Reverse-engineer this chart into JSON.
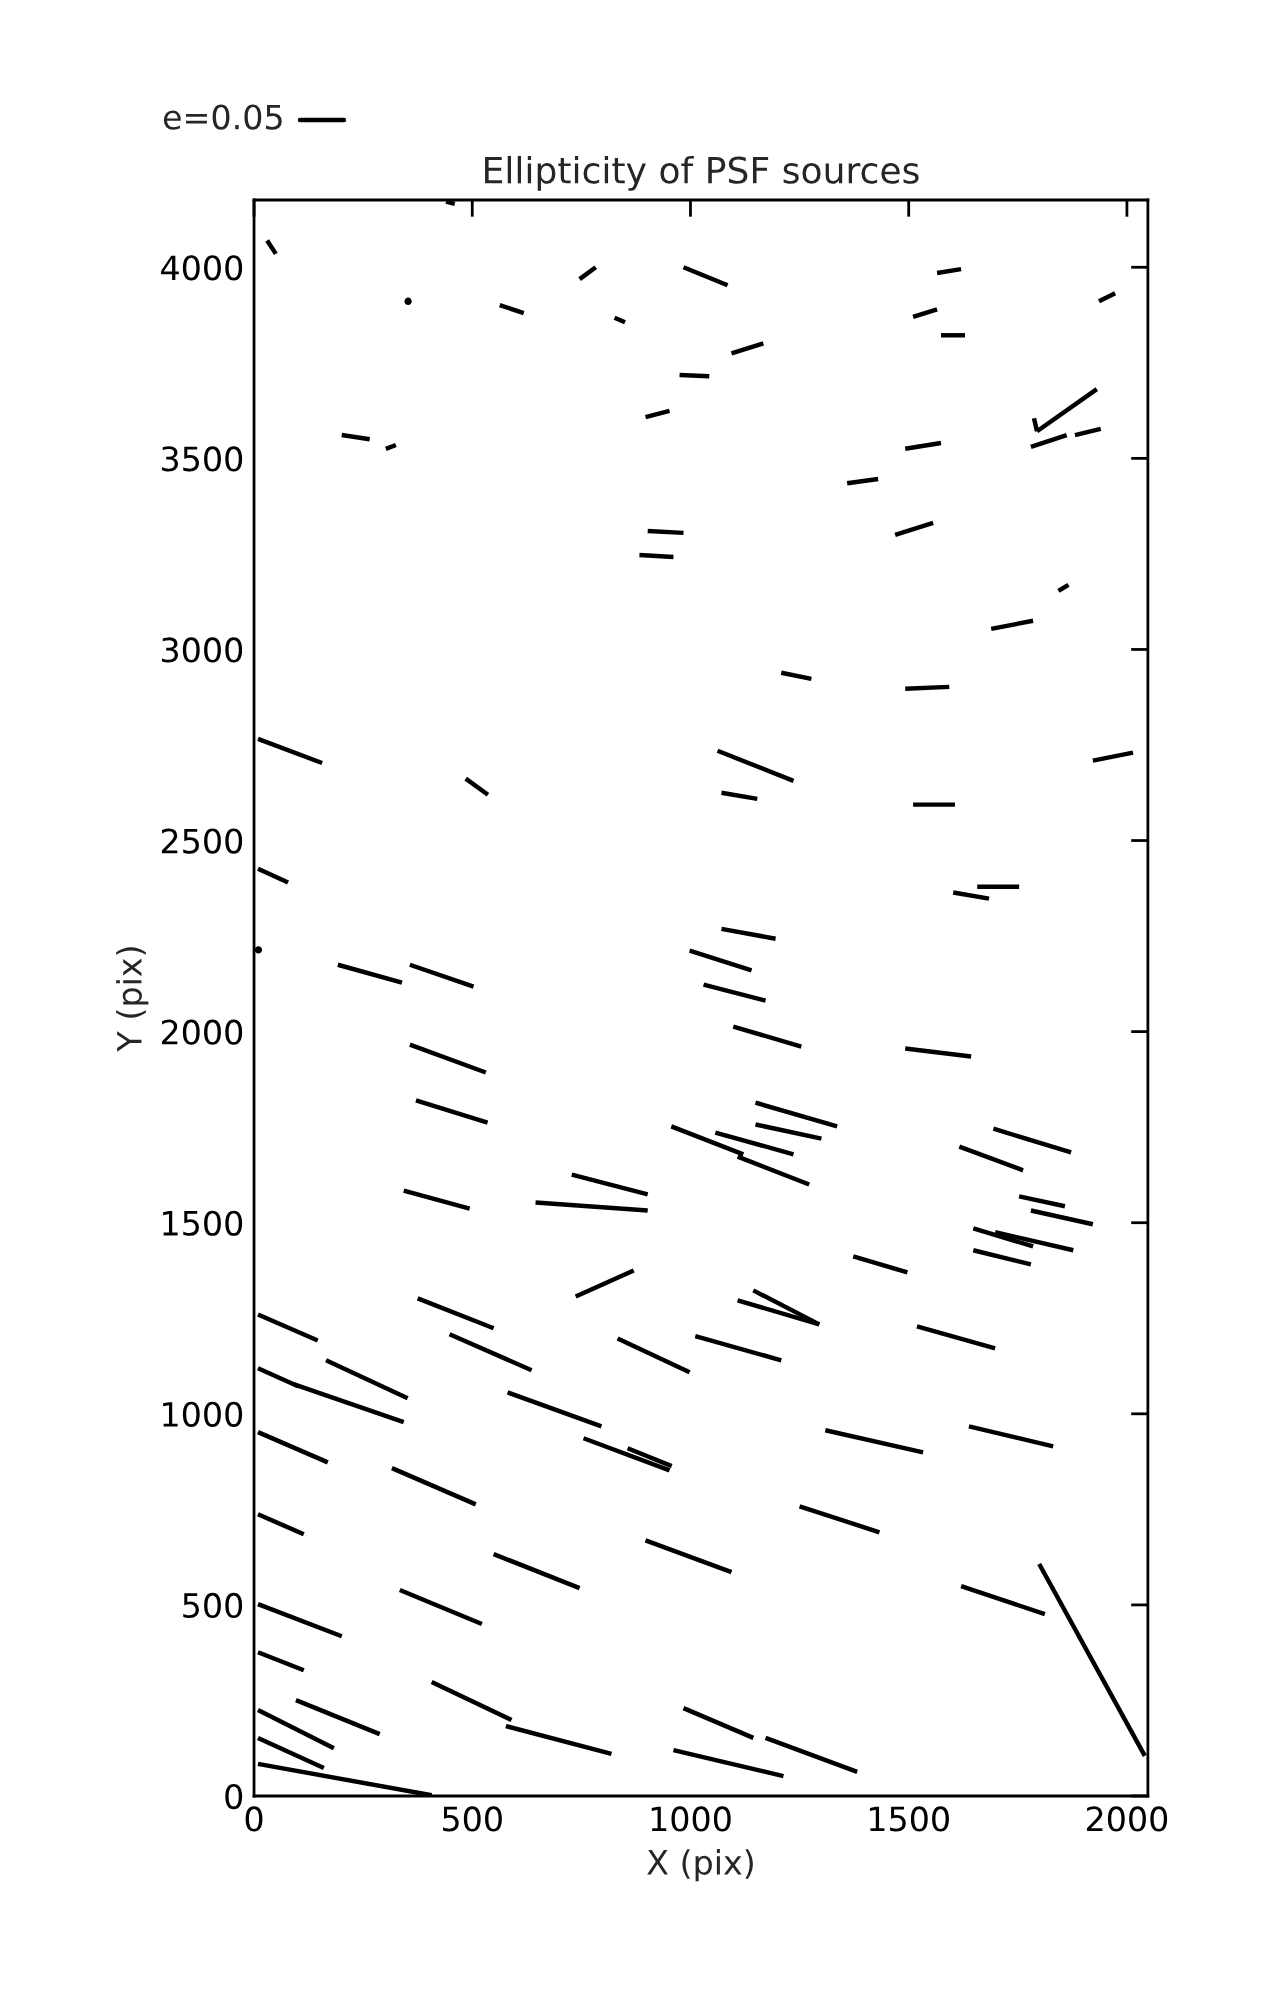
{
  "chart_data": {
    "type": "line",
    "title": "Ellipticity of PSF sources",
    "xlabel": "X (pix)",
    "ylabel": "Y (pix)",
    "annotations": [
      "e=0.05"
    ],
    "xlim": [
      0,
      2048
    ],
    "ylim": [
      0,
      4176
    ],
    "xticks": [
      0,
      500,
      1000,
      1500,
      2000
    ],
    "yticks": [
      0,
      500,
      1000,
      1500,
      2000,
      2500,
      3000,
      3500,
      4000
    ],
    "grid": false,
    "line_style": "solid",
    "marker": "none",
    "series": [
      {
        "color": "#000000",
        "x": [
          30,
          50
        ],
        "values": [
          4070,
          4035
        ]
      },
      {
        "color": "#000000",
        "x": [
          440,
          460
        ],
        "values": [
          4172,
          4166
        ]
      },
      {
        "type": "scatter",
        "marker": "circle",
        "color": "#000000",
        "x": [
          353
        ],
        "values": [
          3911
        ]
      },
      {
        "color": "#000000",
        "x": [
          563,
          618
        ],
        "values": [
          3901,
          3880
        ]
      },
      {
        "color": "#000000",
        "x": [
          746,
          783
        ],
        "values": [
          3969,
          4000
        ]
      },
      {
        "color": "#000000",
        "x": [
          826,
          850
        ],
        "values": [
          3868,
          3856
        ]
      },
      {
        "color": "#000000",
        "x": [
          984,
          1085
        ],
        "values": [
          4000,
          3953
        ]
      },
      {
        "color": "#000000",
        "x": [
          975,
          1043
        ],
        "values": [
          3718,
          3715
        ]
      },
      {
        "color": "#000000",
        "x": [
          897,
          952
        ],
        "values": [
          3608,
          3624
        ]
      },
      {
        "color": "#000000",
        "x": [
          201,
          265
        ],
        "values": [
          3561,
          3550
        ]
      },
      {
        "color": "#000000",
        "x": [
          302,
          325
        ],
        "values": [
          3525,
          3535
        ]
      },
      {
        "color": "#000000",
        "x": [
          902,
          984
        ],
        "values": [
          3310,
          3305
        ]
      },
      {
        "color": "#000000",
        "x": [
          883,
          961
        ],
        "values": [
          3247,
          3242
        ]
      },
      {
        "color": "#000000",
        "x": [
          1565,
          1620
        ],
        "values": [
          3985,
          3995
        ]
      },
      {
        "color": "#000000",
        "x": [
          1936,
          1973
        ],
        "values": [
          3911,
          3932
        ]
      },
      {
        "color": "#000000",
        "x": [
          1510,
          1565
        ],
        "values": [
          3870,
          3890
        ]
      },
      {
        "color": "#000000",
        "x": [
          1574,
          1629
        ],
        "values": [
          3822,
          3822
        ]
      },
      {
        "color": "#000000",
        "x": [
          1094,
          1167
        ],
        "values": [
          3775,
          3801
        ]
      },
      {
        "color": "#000000",
        "x": [
          1794,
          1931
        ],
        "values": [
          3571,
          3681
        ]
      },
      {
        "color": "#000000",
        "x": [
          1787,
          1794
        ],
        "values": [
          3605,
          3571
        ]
      },
      {
        "color": "#000000",
        "x": [
          1780,
          1862
        ],
        "values": [
          3530,
          3561
        ]
      },
      {
        "color": "#000000",
        "x": [
          1881,
          1940
        ],
        "values": [
          3561,
          3577
        ]
      },
      {
        "color": "#000000",
        "x": [
          1492,
          1574
        ],
        "values": [
          3525,
          3540
        ]
      },
      {
        "color": "#000000",
        "x": [
          1359,
          1430
        ],
        "values": [
          3435,
          3446
        ]
      },
      {
        "color": "#000000",
        "x": [
          1469,
          1556
        ],
        "values": [
          3300,
          3331
        ]
      },
      {
        "color": "#000000",
        "x": [
          1843,
          1866
        ],
        "values": [
          3153,
          3169
        ]
      },
      {
        "color": "#000000",
        "x": [
          1689,
          1785
        ],
        "values": [
          3054,
          3075
        ]
      },
      {
        "color": "#000000",
        "x": [
          1208,
          1277
        ],
        "values": [
          2939,
          2923
        ]
      },
      {
        "color": "#000000",
        "x": [
          1492,
          1593
        ],
        "values": [
          2897,
          2902
        ]
      },
      {
        "color": "#000000",
        "x": [
          9,
          156
        ],
        "values": [
          2766,
          2703
        ]
      },
      {
        "color": "#000000",
        "x": [
          485,
          536
        ],
        "values": [
          2662,
          2620
        ]
      },
      {
        "color": "#000000",
        "x": [
          9,
          78
        ],
        "values": [
          2426,
          2390
        ]
      },
      {
        "type": "scatter",
        "marker": "circle",
        "color": "#000000",
        "x": [
          10
        ],
        "values": [
          2214
        ]
      },
      {
        "color": "#000000",
        "x": [
          192,
          339
        ],
        "values": [
          2175,
          2128
        ]
      },
      {
        "color": "#000000",
        "x": [
          357,
          503
        ],
        "values": [
          2175,
          2118
        ]
      },
      {
        "color": "#000000",
        "x": [
          357,
          531
        ],
        "values": [
          1966,
          1893
        ]
      },
      {
        "color": "#000000",
        "x": [
          371,
          535
        ],
        "values": [
          1820,
          1762
        ]
      },
      {
        "color": "#000000",
        "x": [
          343,
          494
        ],
        "values": [
          1584,
          1537
        ]
      },
      {
        "color": "#000000",
        "x": [
          728,
          902
        ],
        "values": [
          1626,
          1574
        ]
      },
      {
        "color": "#000000",
        "x": [
          645,
          902
        ],
        "values": [
          1553,
          1532
        ]
      },
      {
        "color": "#000000",
        "x": [
          737,
          870
        ],
        "values": [
          1307,
          1375
        ]
      },
      {
        "color": "#000000",
        "x": [
          956,
          1121
        ],
        "values": [
          1752,
          1679
        ]
      },
      {
        "color": "#000000",
        "x": [
          1062,
          1236
        ],
        "values": [
          2735,
          2656
        ]
      },
      {
        "color": "#000000",
        "x": [
          1071,
          1153
        ],
        "values": [
          2625,
          2609
        ]
      },
      {
        "color": "#000000",
        "x": [
          1510,
          1606
        ],
        "values": [
          2594,
          2594
        ]
      },
      {
        "color": "#000000",
        "x": [
          1922,
          2014
        ],
        "values": [
          2709,
          2730
        ]
      },
      {
        "color": "#000000",
        "x": [
          1657,
          1753
        ],
        "values": [
          2379,
          2379
        ]
      },
      {
        "color": "#000000",
        "x": [
          1602,
          1684
        ],
        "values": [
          2364,
          2348
        ]
      },
      {
        "color": "#000000",
        "x": [
          1071,
          1195
        ],
        "values": [
          2269,
          2243
        ]
      },
      {
        "color": "#000000",
        "x": [
          998,
          1140
        ],
        "values": [
          2212,
          2160
        ]
      },
      {
        "color": "#000000",
        "x": [
          1030,
          1172
        ],
        "values": [
          2123,
          2081
        ]
      },
      {
        "color": "#000000",
        "x": [
          1098,
          1254
        ],
        "values": [
          2013,
          1961
        ]
      },
      {
        "color": "#000000",
        "x": [
          1492,
          1643
        ],
        "values": [
          1956,
          1935
        ]
      },
      {
        "color": "#000000",
        "x": [
          1149,
          1336
        ],
        "values": [
          1814,
          1752
        ]
      },
      {
        "color": "#000000",
        "x": [
          1149,
          1300
        ],
        "values": [
          1757,
          1720
        ]
      },
      {
        "color": "#000000",
        "x": [
          1057,
          1236
        ],
        "values": [
          1736,
          1679
        ]
      },
      {
        "color": "#000000",
        "x": [
          1108,
          1272
        ],
        "values": [
          1673,
          1600
        ]
      },
      {
        "color": "#000000",
        "x": [
          1694,
          1872
        ],
        "values": [
          1746,
          1684
        ]
      },
      {
        "color": "#000000",
        "x": [
          1616,
          1762
        ],
        "values": [
          1699,
          1637
        ]
      },
      {
        "color": "#000000",
        "x": [
          1753,
          1858
        ],
        "values": [
          1569,
          1543
        ]
      },
      {
        "color": "#000000",
        "x": [
          1780,
          1922
        ],
        "values": [
          1532,
          1496
        ]
      },
      {
        "color": "#000000",
        "x": [
          1648,
          1785
        ],
        "values": [
          1485,
          1438
        ]
      },
      {
        "color": "#000000",
        "x": [
          1698,
          1877
        ],
        "values": [
          1475,
          1428
        ]
      },
      {
        "color": "#000000",
        "x": [
          1648,
          1780
        ],
        "values": [
          1428,
          1391
        ]
      },
      {
        "color": "#000000",
        "x": [
          1373,
          1497
        ],
        "values": [
          1412,
          1370
        ]
      },
      {
        "color": "#000000",
        "x": [
          375,
          549
        ],
        "values": [
          1302,
          1224
        ]
      },
      {
        "color": "#000000",
        "x": [
          9,
          146
        ],
        "values": [
          1260,
          1192
        ]
      },
      {
        "color": "#000000",
        "x": [
          448,
          636
        ],
        "values": [
          1208,
          1114
        ]
      },
      {
        "color": "#000000",
        "x": [
          833,
          998
        ],
        "values": [
          1197,
          1109
        ]
      },
      {
        "color": "#000000",
        "x": [
          165,
          352
        ],
        "values": [
          1140,
          1041
        ]
      },
      {
        "color": "#000000",
        "x": [
          9,
          101
        ],
        "values": [
          1119,
          1072
        ]
      },
      {
        "color": "#000000",
        "x": [
          92,
          343
        ],
        "values": [
          1077,
          978
        ]
      },
      {
        "color": "#000000",
        "x": [
          581,
          796
        ],
        "values": [
          1056,
          967
        ]
      },
      {
        "color": "#000000",
        "x": [
          9,
          169
        ],
        "values": [
          952,
          873
        ]
      },
      {
        "color": "#000000",
        "x": [
          755,
          952
        ],
        "values": [
          936,
          852
        ]
      },
      {
        "color": "#000000",
        "x": [
          856,
          957
        ],
        "values": [
          910,
          863
        ]
      },
      {
        "color": "#000000",
        "x": [
          316,
          508
        ],
        "values": [
          858,
          763
        ]
      },
      {
        "color": "#000000",
        "x": [
          9,
          114
        ],
        "values": [
          737,
          685
        ]
      },
      {
        "color": "#000000",
        "x": [
          549,
          746
        ],
        "values": [
          633,
          544
        ]
      },
      {
        "color": "#000000",
        "x": [
          897,
          1094
        ],
        "values": [
          669,
          586
        ]
      },
      {
        "color": "#000000",
        "x": [
          334,
          522
        ],
        "values": [
          539,
          450
        ]
      },
      {
        "color": "#000000",
        "x": [
          9,
          201
        ],
        "values": [
          502,
          418
        ]
      },
      {
        "color": "#000000",
        "x": [
          9,
          114
        ],
        "values": [
          376,
          329
        ]
      },
      {
        "color": "#000000",
        "x": [
          407,
          590
        ],
        "values": [
          298,
          199
        ]
      },
      {
        "color": "#000000",
        "x": [
          96,
          288
        ],
        "values": [
          251,
          162
        ]
      },
      {
        "color": "#000000",
        "x": [
          577,
          819
        ],
        "values": [
          183,
          110
        ]
      },
      {
        "color": "#000000",
        "x": [
          9,
          183
        ],
        "values": [
          225,
          125
        ]
      },
      {
        "color": "#000000",
        "x": [
          9,
          160
        ],
        "values": [
          152,
          73
        ]
      },
      {
        "color": "#000000",
        "x": [
          9,
          407
        ],
        "values": [
          84,
          2
        ]
      },
      {
        "color": "#000000",
        "x": [
          984,
          1144
        ],
        "values": [
          230,
          152
        ]
      },
      {
        "color": "#000000",
        "x": [
          961,
          1213
        ],
        "values": [
          120,
          52
        ]
      },
      {
        "color": "#000000",
        "x": [
          1144,
          1295
        ],
        "values": [
          1323,
          1234
        ]
      },
      {
        "color": "#000000",
        "x": [
          1108,
          1295
        ],
        "values": [
          1297,
          1234
        ]
      },
      {
        "color": "#000000",
        "x": [
          1011,
          1208
        ],
        "values": [
          1203,
          1140
        ]
      },
      {
        "color": "#000000",
        "x": [
          1519,
          1698
        ],
        "values": [
          1229,
          1171
        ]
      },
      {
        "color": "#000000",
        "x": [
          1309,
          1533
        ],
        "values": [
          957,
          899
        ]
      },
      {
        "color": "#000000",
        "x": [
          1638,
          1831
        ],
        "values": [
          967,
          915
        ]
      },
      {
        "color": "#000000",
        "x": [
          1250,
          1433
        ],
        "values": [
          758,
          690
        ]
      },
      {
        "color": "#000000",
        "x": [
          1620,
          1812
        ],
        "values": [
          549,
          476
        ]
      },
      {
        "color": "#000000",
        "x": [
          1799,
          2041
        ],
        "values": [
          607,
          105
        ]
      },
      {
        "color": "#000000",
        "x": [
          1172,
          1382
        ],
        "values": [
          152,
          63
        ]
      }
    ]
  }
}
